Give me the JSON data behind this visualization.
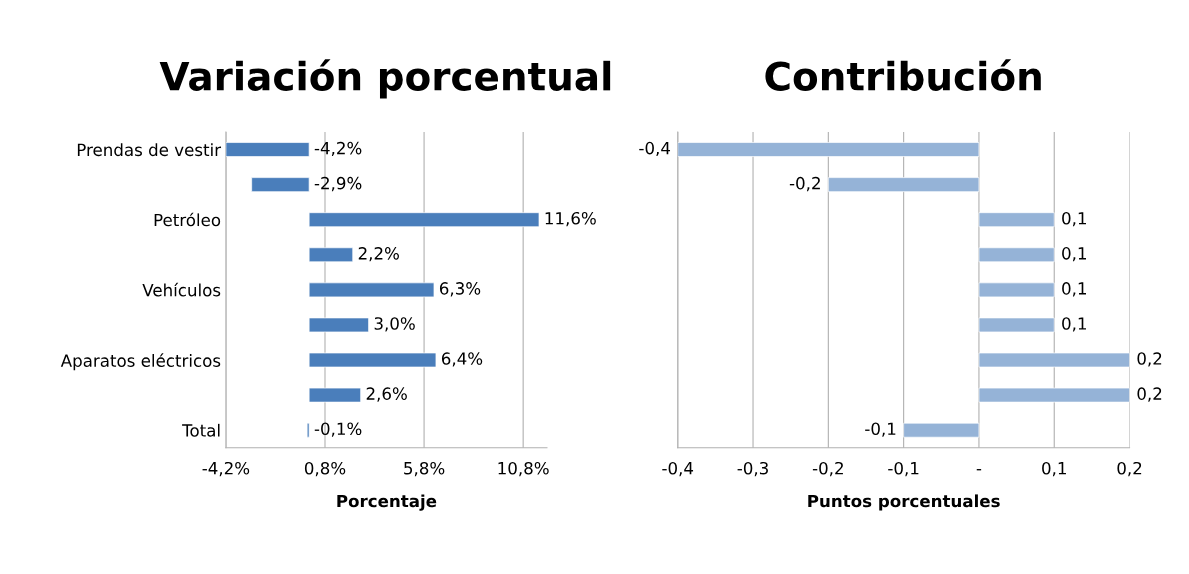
{
  "chart_data": [
    {
      "type": "bar",
      "orientation": "horizontal",
      "title": "Variación porcentual",
      "xlabel": "Porcentaje",
      "categories": [
        "Prendas de vestir",
        null,
        "Petróleo",
        null,
        "Vehículos",
        null,
        "Aparatos eléctricos",
        null,
        "Total"
      ],
      "values": [
        -4.2,
        -2.9,
        11.6,
        2.2,
        6.3,
        3.0,
        6.4,
        2.6,
        -0.1
      ],
      "value_labels": [
        "-4,2%",
        "-2,9%",
        "11,6%",
        "2,2%",
        "6,3%",
        "3,0%",
        "6,4%",
        "2,6%",
        "-0,1%"
      ],
      "color": "#4a7ebb",
      "xlim": [
        -4.2,
        12
      ],
      "xticks": [
        {
          "value": -4.2,
          "label": "-4,2%"
        },
        {
          "value": 0.8,
          "label": "0,8%"
        },
        {
          "value": 5.8,
          "label": "5,8%"
        },
        {
          "value": 10.8,
          "label": "10,8%"
        }
      ],
      "grid": "x"
    },
    {
      "type": "bar",
      "orientation": "horizontal",
      "title": "Contribución",
      "xlabel": "Puntos porcentuales",
      "categories": [
        null,
        null,
        null,
        null,
        null,
        null,
        null,
        null,
        null
      ],
      "values": [
        -0.4,
        -0.2,
        0.1,
        0.1,
        0.1,
        0.1,
        0.2,
        0.2,
        -0.1
      ],
      "value_labels": [
        "-0,4",
        "-0,2",
        "0,1",
        "0,1",
        "0,1",
        "0,1",
        "0,2",
        "0,2",
        "-0,1"
      ],
      "color": "#95b3d7",
      "xlim": [
        -0.4,
        0.2
      ],
      "xticks": [
        {
          "value": -0.4,
          "label": "-0,4"
        },
        {
          "value": -0.3,
          "label": "-0,3"
        },
        {
          "value": -0.2,
          "label": "-0,2"
        },
        {
          "value": -0.1,
          "label": "-0,1"
        },
        {
          "value": 0,
          "label": "-"
        },
        {
          "value": 0.1,
          "label": "0,1"
        },
        {
          "value": 0.2,
          "label": "0,2"
        }
      ],
      "grid": "x"
    }
  ]
}
